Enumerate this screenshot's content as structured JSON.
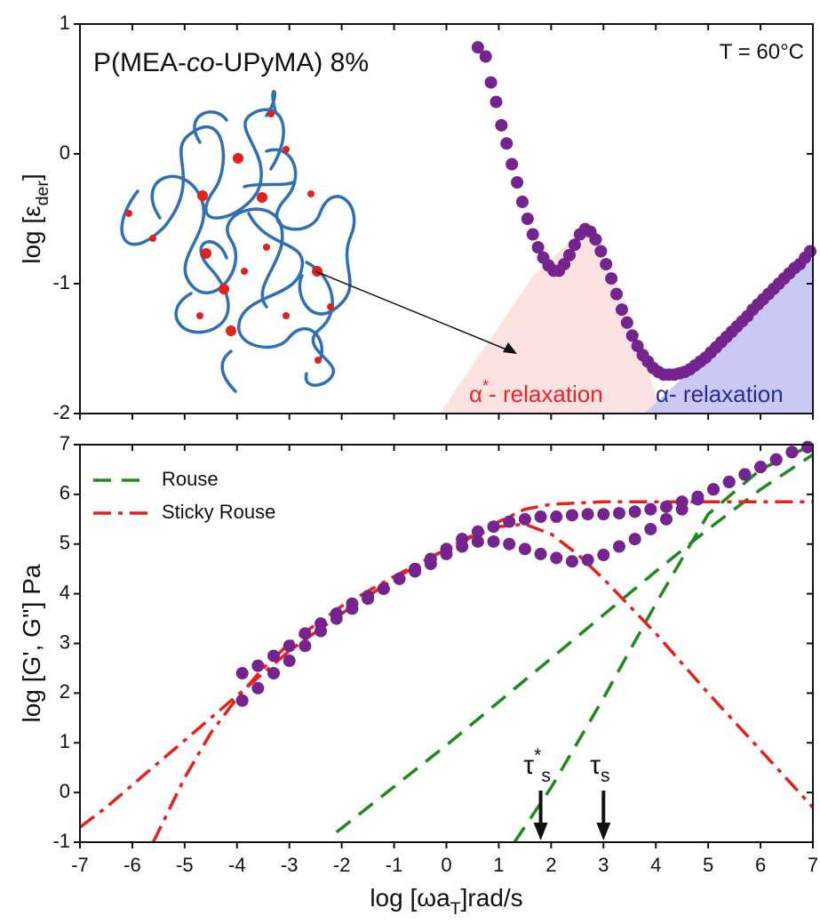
{
  "chart_data": [
    {
      "type": "scatter",
      "title": [
        "P(MEA-",
        "co",
        "-UPyMA) 8%"
      ],
      "y_label": [
        "log [ε",
        "der",
        "]"
      ],
      "annotations": [
        [
          "T = 60°C"
        ],
        [
          "α",
          "*",
          "- relaxation"
        ],
        [
          "α- relaxation"
        ]
      ],
      "xlim": [
        -7,
        7
      ],
      "xticks": [
        -7,
        -6,
        -5,
        -4,
        -3,
        -2,
        -1,
        0,
        1,
        2,
        3,
        4,
        5,
        6,
        7
      ],
      "ylim": [
        -2,
        1
      ],
      "yticks": [
        -2,
        -1,
        0,
        1
      ],
      "series": [
        {
          "color": "#74238f",
          "mode": "markers",
          "x": [
            0.6,
            0.75,
            0.85,
            0.95,
            1.05,
            1.15,
            1.25,
            1.35,
            1.45,
            1.55,
            1.65,
            1.75,
            1.85,
            1.95,
            2.05,
            2.15,
            2.25,
            2.35,
            2.45,
            2.55,
            2.65,
            2.75,
            2.85,
            2.95,
            3.05,
            3.15,
            3.25,
            3.35,
            3.45,
            3.55,
            3.65,
            3.75,
            3.85,
            3.95,
            4.05,
            4.15,
            4.25,
            4.35,
            4.45,
            4.55,
            4.65,
            4.75,
            4.85,
            4.95,
            5.05,
            5.15,
            5.25,
            5.35,
            5.45,
            5.55,
            5.65,
            5.75,
            5.85,
            5.95,
            6.05,
            6.15,
            6.25,
            6.35,
            6.45,
            6.55,
            6.65,
            6.75,
            6.85,
            6.95
          ],
          "values": [
            0.82,
            0.75,
            0.55,
            0.4,
            0.22,
            0.08,
            -0.08,
            -0.22,
            -0.37,
            -0.5,
            -0.62,
            -0.72,
            -0.8,
            -0.86,
            -0.9,
            -0.9,
            -0.85,
            -0.78,
            -0.7,
            -0.62,
            -0.58,
            -0.6,
            -0.66,
            -0.75,
            -0.85,
            -0.96,
            -1.08,
            -1.2,
            -1.3,
            -1.4,
            -1.48,
            -1.55,
            -1.6,
            -1.65,
            -1.68,
            -1.7,
            -1.7,
            -1.7,
            -1.69,
            -1.68,
            -1.66,
            -1.63,
            -1.6,
            -1.57,
            -1.53,
            -1.49,
            -1.45,
            -1.41,
            -1.37,
            -1.33,
            -1.29,
            -1.25,
            -1.2,
            -1.16,
            -1.12,
            -1.08,
            -1.04,
            -1.0,
            -0.96,
            -0.92,
            -0.88,
            -0.85,
            -0.8,
            -0.75
          ]
        }
      ]
    },
    {
      "type": "line",
      "y_label": [
        "log [G', G''] Pa"
      ],
      "x_label": [
        "log [ωa",
        "T",
        "]rad/s"
      ],
      "xlim": [
        -7,
        7
      ],
      "xticks": [
        -7,
        -6,
        -5,
        -4,
        -3,
        -2,
        -1,
        0,
        1,
        2,
        3,
        4,
        5,
        6,
        7
      ],
      "ylim": [
        -1,
        7
      ],
      "yticks": [
        -1,
        0,
        1,
        2,
        3,
        4,
        5,
        6,
        7
      ],
      "arrows": [
        {
          "label": [
            "τ",
            "*",
            "s"
          ],
          "x": 1.8
        },
        {
          "label": [
            "τ",
            "s"
          ],
          "x": 3.0
        }
      ],
      "series": [
        {
          "name": "Rouse",
          "color": "#1e8a1e",
          "mode": "dashed",
          "x": [
            -2.1,
            0,
            2,
            4,
            5,
            6,
            7
          ],
          "values": [
            -0.8,
            0.95,
            2.7,
            4.45,
            5.3,
            6.1,
            6.8
          ]
        },
        {
          "color": "#1e8a1e",
          "mode": "dashed",
          "x": [
            1.3,
            2,
            3,
            4,
            5,
            6,
            7
          ],
          "values": [
            -1,
            0.1,
            1.9,
            3.8,
            5.6,
            6.5,
            7
          ]
        },
        {
          "name": "Sticky Rouse",
          "color": "#e8201c",
          "mode": "dashdot",
          "x": [
            -7,
            -6.5,
            -6,
            -5.5,
            -5,
            -4.5,
            -4,
            -3.5,
            -3,
            -2,
            -1,
            0,
            0.5,
            1,
            1.5,
            2,
            2.5,
            3,
            4,
            5,
            6,
            7
          ],
          "values": [
            -0.7,
            -0.3,
            0.15,
            0.6,
            1.05,
            1.5,
            1.95,
            2.4,
            2.85,
            3.6,
            4.3,
            4.9,
            5.15,
            5.35,
            5.4,
            5.2,
            4.8,
            4.3,
            3.2,
            2.0,
            0.85,
            -0.3
          ]
        },
        {
          "color": "#e8201c",
          "mode": "dashdot",
          "x": [
            -5.6,
            -5,
            -4.5,
            -4,
            -3.5,
            -3,
            -2,
            -1,
            0,
            1,
            1.5,
            2,
            3,
            4,
            5,
            6,
            7
          ],
          "values": [
            -1,
            0.3,
            1.2,
            1.9,
            2.5,
            3.0,
            3.75,
            4.35,
            4.9,
            5.45,
            5.7,
            5.8,
            5.85,
            5.85,
            5.85,
            5.85,
            5.85
          ]
        },
        {
          "color": "#74238f",
          "mode": "markers",
          "x": [
            -3.9,
            -3.6,
            -3.3,
            -3,
            -2.7,
            -2.4,
            -2.1,
            -1.8,
            -1.5,
            -1.2,
            -0.9,
            -0.6,
            -0.3,
            0,
            0.3,
            0.6,
            0.9,
            1.2,
            1.5,
            1.8,
            2.1,
            2.4,
            2.7,
            3.0,
            3.3,
            3.6,
            3.9,
            4.2,
            4.5,
            4.8,
            5.1,
            5.4,
            5.7,
            6.0,
            6.3,
            6.6,
            6.9
          ],
          "values": [
            2.4,
            2.55,
            2.75,
            2.95,
            3.2,
            3.4,
            3.6,
            3.8,
            3.95,
            4.1,
            4.3,
            4.45,
            4.6,
            4.8,
            4.95,
            5.05,
            5.05,
            5.0,
            4.9,
            4.8,
            4.72,
            4.65,
            4.68,
            4.78,
            4.95,
            5.1,
            5.3,
            5.5,
            5.7,
            5.9,
            6.1,
            6.25,
            6.4,
            6.55,
            6.7,
            6.85,
            6.95
          ]
        },
        {
          "color": "#74238f",
          "mode": "markers",
          "x": [
            -3.9,
            -3.6,
            -3.3,
            -3,
            -2.7,
            -2.4,
            -2.1,
            -1.8,
            -1.5,
            -1.2,
            -0.9,
            -0.6,
            -0.3,
            0,
            0.3,
            0.6,
            0.9,
            1.2,
            1.5,
            1.8,
            2.1,
            2.4,
            2.7,
            3.0,
            3.3,
            3.6,
            3.9,
            4.2,
            4.5,
            4.8,
            5.1,
            5.4,
            5.7,
            6.0,
            6.3,
            6.6,
            6.9
          ],
          "values": [
            1.85,
            2.1,
            2.4,
            2.65,
            2.95,
            3.25,
            3.5,
            3.7,
            3.9,
            4.1,
            4.3,
            4.5,
            4.7,
            4.9,
            5.1,
            5.25,
            5.35,
            5.45,
            5.5,
            5.55,
            5.55,
            5.58,
            5.6,
            5.6,
            5.62,
            5.65,
            5.7,
            5.75,
            5.85,
            5.95,
            6.1,
            6.25,
            6.4,
            6.55,
            6.7,
            6.85,
            6.95
          ]
        }
      ]
    }
  ]
}
